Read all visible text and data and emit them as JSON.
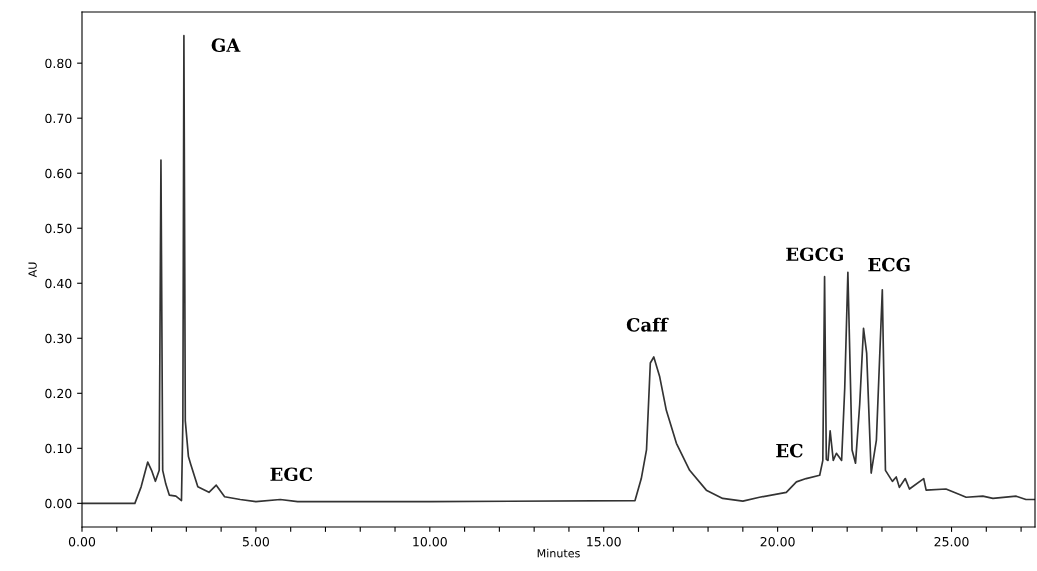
{
  "chart_data": {
    "type": "line",
    "xlabel": "Minutes",
    "ylabel": "AU",
    "xlim": [
      0,
      27.4
    ],
    "ylim": [
      -0.043,
      0.893
    ],
    "xticks": [
      {
        "value": 0,
        "label": "0.00"
      },
      {
        "value": 1,
        "label": null
      },
      {
        "value": 2,
        "label": null
      },
      {
        "value": 3,
        "label": null
      },
      {
        "value": 4,
        "label": null
      },
      {
        "value": 5,
        "label": "5.00"
      },
      {
        "value": 6,
        "label": null
      },
      {
        "value": 7,
        "label": null
      },
      {
        "value": 8,
        "label": null
      },
      {
        "value": 9,
        "label": null
      },
      {
        "value": 10,
        "label": "10.00"
      },
      {
        "value": 11,
        "label": null
      },
      {
        "value": 12,
        "label": null
      },
      {
        "value": 13,
        "label": null
      },
      {
        "value": 14,
        "label": null
      },
      {
        "value": 15,
        "label": "15.00"
      },
      {
        "value": 16,
        "label": null
      },
      {
        "value": 17,
        "label": null
      },
      {
        "value": 18,
        "label": null
      },
      {
        "value": 19,
        "label": null
      },
      {
        "value": 20,
        "label": "20.00"
      },
      {
        "value": 21,
        "label": null
      },
      {
        "value": 22,
        "label": null
      },
      {
        "value": 23,
        "label": null
      },
      {
        "value": 24,
        "label": null
      },
      {
        "value": 25,
        "label": "25.00"
      },
      {
        "value": 26,
        "label": null
      },
      {
        "value": 27,
        "label": null
      }
    ],
    "yticks": [
      {
        "value": 0,
        "label": "0.00"
      },
      {
        "value": 0.1,
        "label": "0.10"
      },
      {
        "value": 0.2,
        "label": "0.20"
      },
      {
        "value": 0.3,
        "label": "0.30"
      },
      {
        "value": 0.4,
        "label": "0.40"
      },
      {
        "value": 0.5,
        "label": "0.50"
      },
      {
        "value": 0.6,
        "label": "0.60"
      },
      {
        "value": 0.7,
        "label": "0.70"
      },
      {
        "value": 0.8,
        "label": "0.80"
      }
    ],
    "grid": false,
    "marker": "none",
    "line_style": "solid",
    "series": [
      {
        "color": "#333333",
        "x": [
          0,
          1.52,
          1.7,
          1.89,
          2.0,
          2.11,
          2.22,
          2.27,
          2.32,
          2.41,
          2.51,
          2.7,
          2.86,
          2.9,
          2.93,
          2.97,
          3.06,
          3.13,
          3.33,
          3.65,
          3.86,
          4.1,
          4.55,
          5.0,
          5.7,
          6.2,
          10,
          15.9,
          16.08,
          16.23,
          16.34,
          16.44,
          16.61,
          16.8,
          17.09,
          17.47,
          17.95,
          18.42,
          19.0,
          19.48,
          20.25,
          20.54,
          20.82,
          21.21,
          21.3,
          21.35,
          21.4,
          21.45,
          21.51,
          21.6,
          21.69,
          21.84,
          21.93,
          22.02,
          22.14,
          22.24,
          22.36,
          22.47,
          22.56,
          22.69,
          22.84,
          23.01,
          23.1,
          23.3,
          23.41,
          23.5,
          23.67,
          23.79,
          24.2,
          24.27,
          24.84,
          25.23,
          25.42,
          25.9,
          26.19,
          26.86,
          27.14,
          27.4
        ],
        "values": [
          0.0,
          0.0,
          0.03,
          0.075,
          0.06,
          0.04,
          0.06,
          0.624,
          0.06,
          0.035,
          0.015,
          0.013,
          0.005,
          0.15,
          0.85,
          0.15,
          0.085,
          0.07,
          0.03,
          0.02,
          0.033,
          0.012,
          0.007,
          0.003,
          0.007,
          0.003,
          0.003,
          0.005,
          0.045,
          0.097,
          0.255,
          0.266,
          0.23,
          0.169,
          0.109,
          0.06,
          0.024,
          0.009,
          0.004,
          0.011,
          0.02,
          0.039,
          0.045,
          0.051,
          0.078,
          0.412,
          0.08,
          0.078,
          0.132,
          0.078,
          0.091,
          0.078,
          0.21,
          0.42,
          0.097,
          0.073,
          0.18,
          0.318,
          0.273,
          0.055,
          0.115,
          0.388,
          0.06,
          0.04,
          0.048,
          0.029,
          0.045,
          0.026,
          0.045,
          0.024,
          0.026,
          0.016,
          0.011,
          0.013,
          0.009,
          0.013,
          0.007,
          0.007
        ]
      }
    ],
    "annotations": [
      {
        "text": "GA",
        "x": 2.93,
        "y": 0.85
      },
      {
        "text": "EGC",
        "x": 5.7,
        "y": 0.007
      },
      {
        "text": "Caff",
        "x": 16.44,
        "y": 0.266
      },
      {
        "text": "EC",
        "x": 20.82,
        "y": 0.045
      },
      {
        "text": "EGCG",
        "x": 21.35,
        "y": 0.412
      },
      {
        "text": "ECG",
        "x": 23.01,
        "y": 0.388
      }
    ]
  }
}
